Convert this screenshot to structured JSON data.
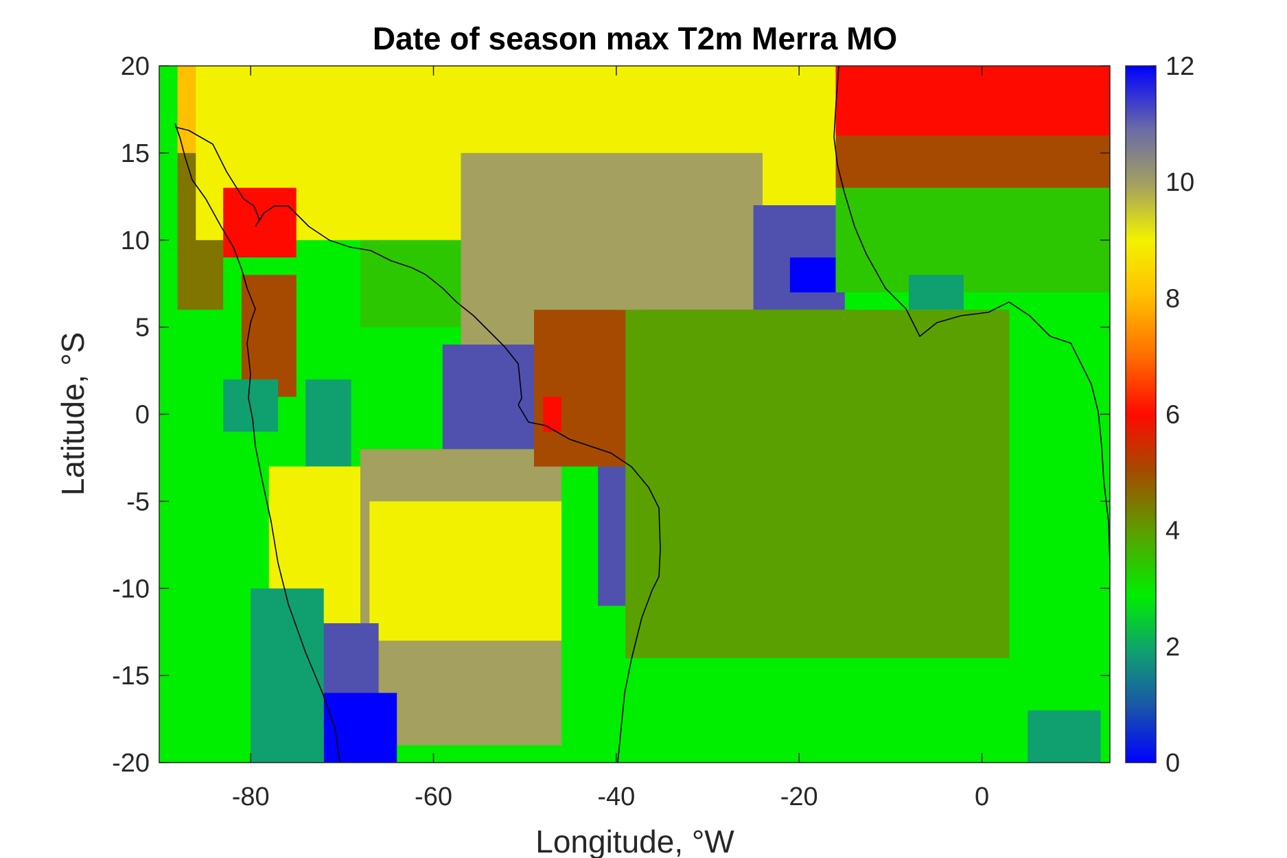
{
  "chart_data": {
    "type": "heatmap",
    "title": "Date of season max T2m Merra MO",
    "xlabel": "Longitude, °W",
    "ylabel": "Latitude, °S",
    "xlim": [
      -90,
      14
    ],
    "ylim": [
      -20,
      20
    ],
    "x_ticks": [
      -80,
      -60,
      -40,
      -20,
      0
    ],
    "x_tick_labels": [
      "-80",
      "-60",
      "-40",
      "-20",
      "0"
    ],
    "y_ticks": [
      20,
      15,
      10,
      5,
      0,
      -5,
      -10,
      -15,
      -20
    ],
    "y_tick_labels": [
      "20",
      "15",
      "10",
      "5",
      "0",
      "-5",
      "-10",
      "-15",
      "-20"
    ],
    "colorbar": {
      "range": [
        0,
        12
      ],
      "ticks": [
        12,
        10,
        8,
        6,
        4,
        2,
        0
      ],
      "tick_labels": [
        "12",
        "10",
        "8",
        "6",
        "4",
        "2",
        "0"
      ]
    },
    "grid": false,
    "regions": [
      {
        "value": 3,
        "lon": [
          -90,
          14
        ],
        "lat": [
          -20,
          20
        ]
      },
      {
        "value": 4.5,
        "lon": [
          -88,
          -83
        ],
        "lat": [
          6,
          20
        ]
      },
      {
        "value": 8,
        "lon": [
          -88,
          -72
        ],
        "lat": [
          15,
          20
        ]
      },
      {
        "value": 9,
        "lon": [
          -86,
          -16
        ],
        "lat": [
          10,
          20
        ]
      },
      {
        "value": 6,
        "lon": [
          -83,
          -75
        ],
        "lat": [
          9,
          13
        ]
      },
      {
        "value": 5,
        "lon": [
          -81,
          -75
        ],
        "lat": [
          1,
          8
        ]
      },
      {
        "value": 2,
        "lon": [
          -83,
          -77
        ],
        "lat": [
          -1,
          2
        ]
      },
      {
        "value": 2,
        "lon": [
          -74,
          -69
        ],
        "lat": [
          -3,
          2
        ]
      },
      {
        "value": 3.5,
        "lon": [
          -68,
          -57
        ],
        "lat": [
          5,
          10
        ]
      },
      {
        "value": 9,
        "lon": [
          -78,
          -67
        ],
        "lat": [
          -15,
          -3
        ]
      },
      {
        "value": 10,
        "lon": [
          -68,
          -46
        ],
        "lat": [
          -19,
          -2
        ]
      },
      {
        "value": 9,
        "lon": [
          -67,
          -46
        ],
        "lat": [
          -13,
          -5
        ]
      },
      {
        "value": 10,
        "lon": [
          -57,
          -24
        ],
        "lat": [
          3,
          15
        ]
      },
      {
        "value": 9,
        "lon": [
          -40,
          -37
        ],
        "lat": [
          5,
          6
        ]
      },
      {
        "value": 11,
        "lon": [
          -59,
          -49
        ],
        "lat": [
          -2,
          4
        ]
      },
      {
        "value": 11,
        "lon": [
          -42,
          -37
        ],
        "lat": [
          -11,
          -3
        ]
      },
      {
        "value": 11,
        "lon": [
          -74,
          -66
        ],
        "lat": [
          -18,
          -12
        ]
      },
      {
        "value": 12,
        "lon": [
          -72,
          -64
        ],
        "lat": [
          -20,
          -16
        ]
      },
      {
        "value": 11,
        "lon": [
          -25,
          -15
        ],
        "lat": [
          6,
          12
        ]
      },
      {
        "value": 12,
        "lon": [
          -21,
          -16
        ],
        "lat": [
          7,
          9
        ]
      },
      {
        "value": 5,
        "lon": [
          -49,
          -14
        ],
        "lat": [
          -3,
          6
        ]
      },
      {
        "value": 6,
        "lon": [
          -48,
          -46
        ],
        "lat": [
          -1,
          1
        ]
      },
      {
        "value": 6,
        "lon": [
          -16,
          14
        ],
        "lat": [
          15,
          20
        ]
      },
      {
        "value": 5,
        "lon": [
          -16,
          14
        ],
        "lat": [
          12,
          16
        ]
      },
      {
        "value": 3.5,
        "lon": [
          -16,
          14
        ],
        "lat": [
          7,
          13
        ]
      },
      {
        "value": 2,
        "lon": [
          -8,
          -2
        ],
        "lat": [
          6,
          8
        ]
      },
      {
        "value": 4,
        "lon": [
          -39,
          3
        ],
        "lat": [
          -14,
          6
        ]
      },
      {
        "value": 2,
        "lon": [
          5,
          13
        ],
        "lat": [
          -20,
          -17
        ]
      },
      {
        "value": 2,
        "lon": [
          -80,
          -72
        ],
        "lat": [
          -20,
          -10
        ]
      }
    ]
  }
}
